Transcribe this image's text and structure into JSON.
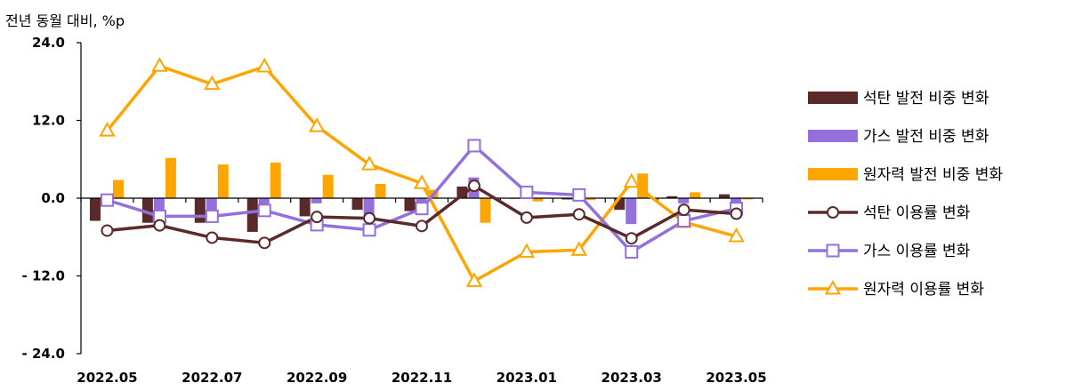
{
  "chart_data": {
    "type": "bar+line",
    "title": "",
    "unit_label": "전년 동월 대비, %p",
    "xlabel": "",
    "ylabel": "",
    "ylim": [
      -24.0,
      24.0
    ],
    "yticks": [
      "24.0",
      "12.0",
      "0.0",
      "- 12.0",
      "- 24.0"
    ],
    "ytick_values": [
      24,
      12,
      0,
      -12,
      -24
    ],
    "grid": false,
    "legend_position": "right",
    "categories": [
      "2022.05",
      "2022.06",
      "2022.07",
      "2022.08",
      "2022.09",
      "2022.10",
      "2022.11",
      "2022.12",
      "2023.01",
      "2023.02",
      "2023.03",
      "2023.04",
      "2023.05"
    ],
    "xtick_labels": [
      "2022.05",
      "",
      "2022.07",
      "",
      "2022.09",
      "",
      "2022.11",
      "",
      "2023.01",
      "",
      "2023.03",
      "",
      "2023.05"
    ],
    "bar_series": [
      {
        "name": "석탄 발전 비중 변화",
        "color": "#5a2a2a",
        "values": [
          -3.5,
          -3.8,
          -3.8,
          -5.2,
          -2.8,
          -1.8,
          -2.0,
          1.8,
          -0.1,
          -0.2,
          -1.8,
          0.3,
          0.6
        ]
      },
      {
        "name": "가스 발전 비중 변화",
        "color": "#9370db",
        "values": [
          -0.6,
          -3.5,
          -2.0,
          -2.0,
          -0.8,
          -3.2,
          -1.5,
          3.2,
          0.3,
          0.2,
          -4.0,
          -0.8,
          -1.7
        ]
      },
      {
        "name": "원자력 발전 비중 변화",
        "color": "#ffa500",
        "values": [
          2.8,
          6.2,
          5.2,
          5.5,
          3.6,
          2.2,
          1.3,
          -3.8,
          -0.5,
          -0.3,
          3.8,
          0.9,
          -0.2
        ]
      }
    ],
    "line_series": [
      {
        "name": "석탄 이용률 변화",
        "color": "#5a2a2a",
        "marker": "circle",
        "values": [
          -5.0,
          -4.2,
          -6.1,
          -6.9,
          -2.9,
          -3.1,
          -4.3,
          1.9,
          -3.0,
          -2.5,
          -6.2,
          -1.8,
          -2.4
        ]
      },
      {
        "name": "가스 이용률 변화",
        "color": "#9370db",
        "marker": "square",
        "values": [
          -0.3,
          -2.8,
          -2.8,
          -1.9,
          -4.1,
          -4.9,
          -1.6,
          8.1,
          0.9,
          0.5,
          -8.3,
          -3.5,
          -1.6
        ]
      },
      {
        "name": "원자력 이용률 변화",
        "color": "#ffa500",
        "marker": "triangle",
        "values": [
          10.4,
          20.4,
          17.6,
          20.3,
          11.1,
          5.2,
          2.3,
          -12.8,
          -8.3,
          -8.0,
          2.5,
          -3.7,
          -5.9
        ]
      }
    ]
  }
}
